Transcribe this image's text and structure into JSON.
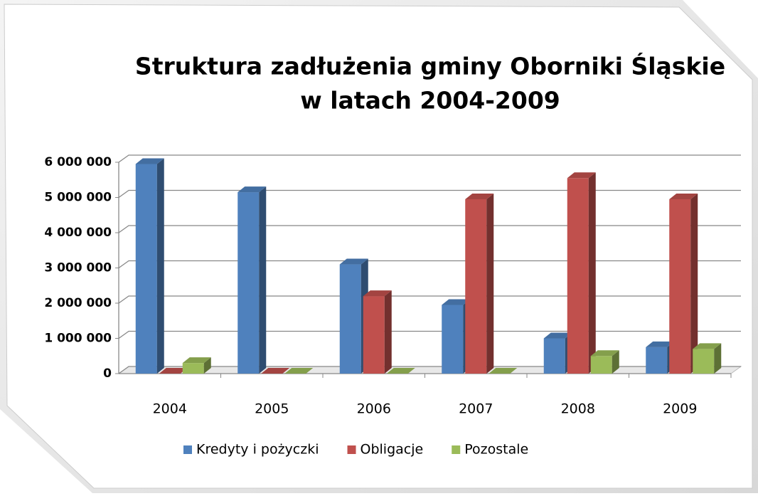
{
  "chart_data": {
    "type": "bar3d",
    "title": [
      "Struktura zadłużenia gminy Oborniki Śląskie",
      "w latach 2004-2009"
    ],
    "categories": [
      "2004",
      "2005",
      "2006",
      "2007",
      "2008",
      "2009"
    ],
    "series": [
      {
        "name": "Kredyty i pożyczki",
        "color": "#4f81bd",
        "values": [
          5950000,
          5150000,
          3100000,
          1950000,
          1000000,
          750000
        ]
      },
      {
        "name": "Obligacje",
        "color": "#c0504d",
        "values": [
          0,
          0,
          2200000,
          4950000,
          5550000,
          4950000
        ]
      },
      {
        "name": "Pozostale",
        "color": "#9bbb59",
        "values": [
          300000,
          0,
          0,
          0,
          500000,
          700000
        ]
      }
    ],
    "ylim": [
      0,
      6000000
    ],
    "yticks": [
      0,
      {
        "value": 1000000,
        "label": "1 000 000"
      },
      {
        "value": 2000000,
        "label": "2 000 000"
      },
      {
        "value": 3000000,
        "label": "3 000 000"
      },
      {
        "value": 4000000,
        "label": "4 000 000"
      },
      {
        "value": 5000000,
        "label": "5 000 000"
      },
      {
        "value": 6000000,
        "label": "6 000 000"
      }
    ],
    "grid": true,
    "legend": "bottom"
  }
}
